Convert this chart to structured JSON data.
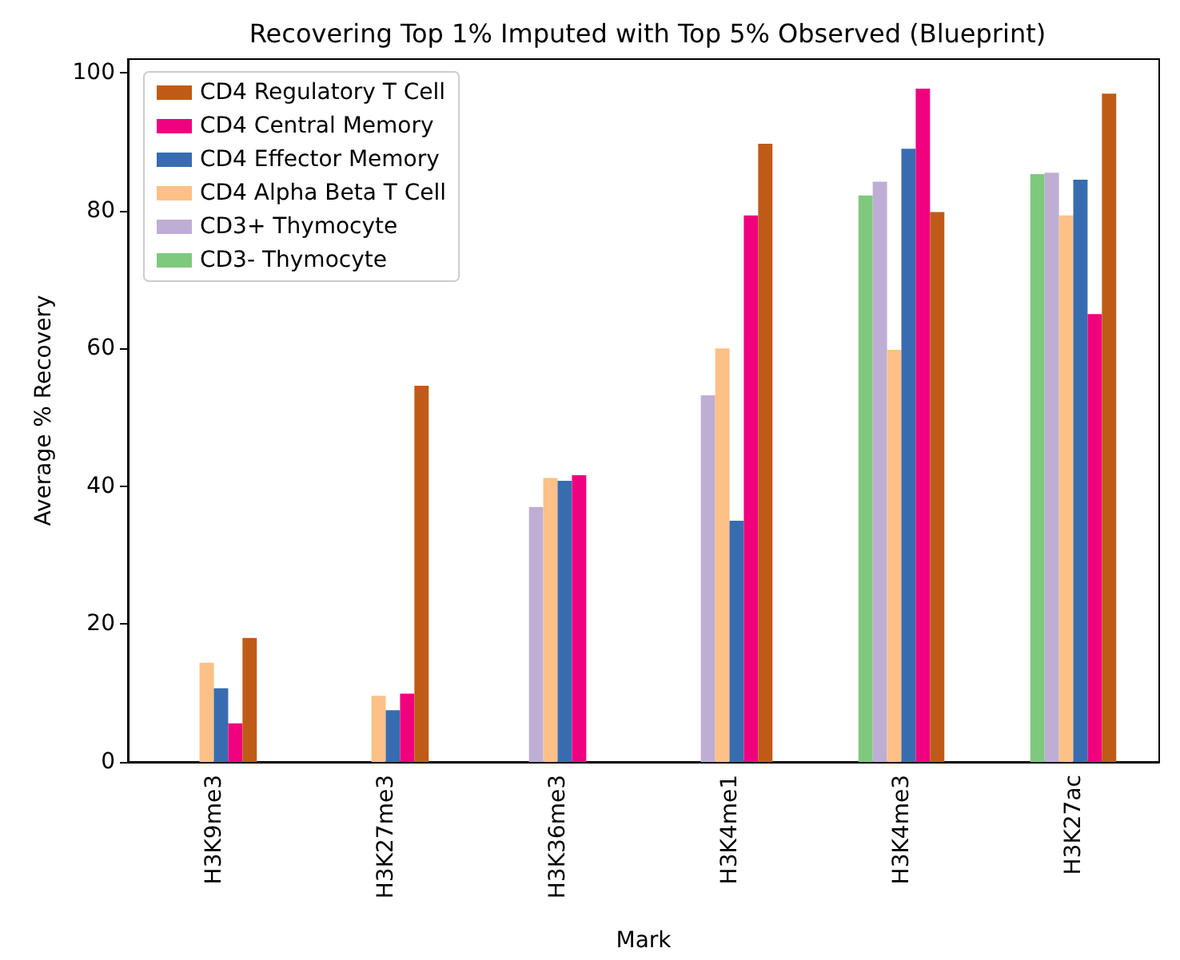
{
  "chart_data": {
    "type": "bar",
    "title": "Recovering Top 1% Imputed with Top 5% Observed (Blueprint)",
    "xlabel": "Mark",
    "ylabel": "Average % Recovery",
    "categories": [
      "H3K9me3",
      "H3K27me3",
      "H3K36me3",
      "H3K4me1",
      "H3K4me3",
      "H3K27ac"
    ],
    "series": [
      {
        "name": "CD3- Thymocyte",
        "color": "#7fc97f",
        "values": [
          null,
          null,
          null,
          null,
          82.2,
          85.3
        ]
      },
      {
        "name": "CD3+ Thymocyte",
        "color": "#beaed4",
        "values": [
          null,
          null,
          37,
          53.2,
          84.2,
          85.5
        ]
      },
      {
        "name": "CD4 Alpha Beta T Cell",
        "color": "#fdc086",
        "values": [
          14.4,
          9.6,
          41.2,
          60,
          59.8,
          79.3
        ]
      },
      {
        "name": "CD4 Effector Memory",
        "color": "#386cb0",
        "values": [
          10.7,
          7.5,
          40.8,
          35,
          89,
          84.5
        ]
      },
      {
        "name": "CD4 Central Memory",
        "color": "#f0027f",
        "values": [
          5.6,
          9.9,
          41.6,
          79.3,
          97.7,
          65
        ]
      },
      {
        "name": "CD4 Regulatory T Cell",
        "color": "#bf5b17",
        "values": [
          18,
          54.6,
          null,
          89.7,
          79.8,
          97
        ]
      }
    ],
    "ylim": [
      0,
      102
    ],
    "yticks": [
      0,
      20,
      40,
      60,
      80,
      100
    ],
    "grid": false,
    "legend": "top left"
  }
}
